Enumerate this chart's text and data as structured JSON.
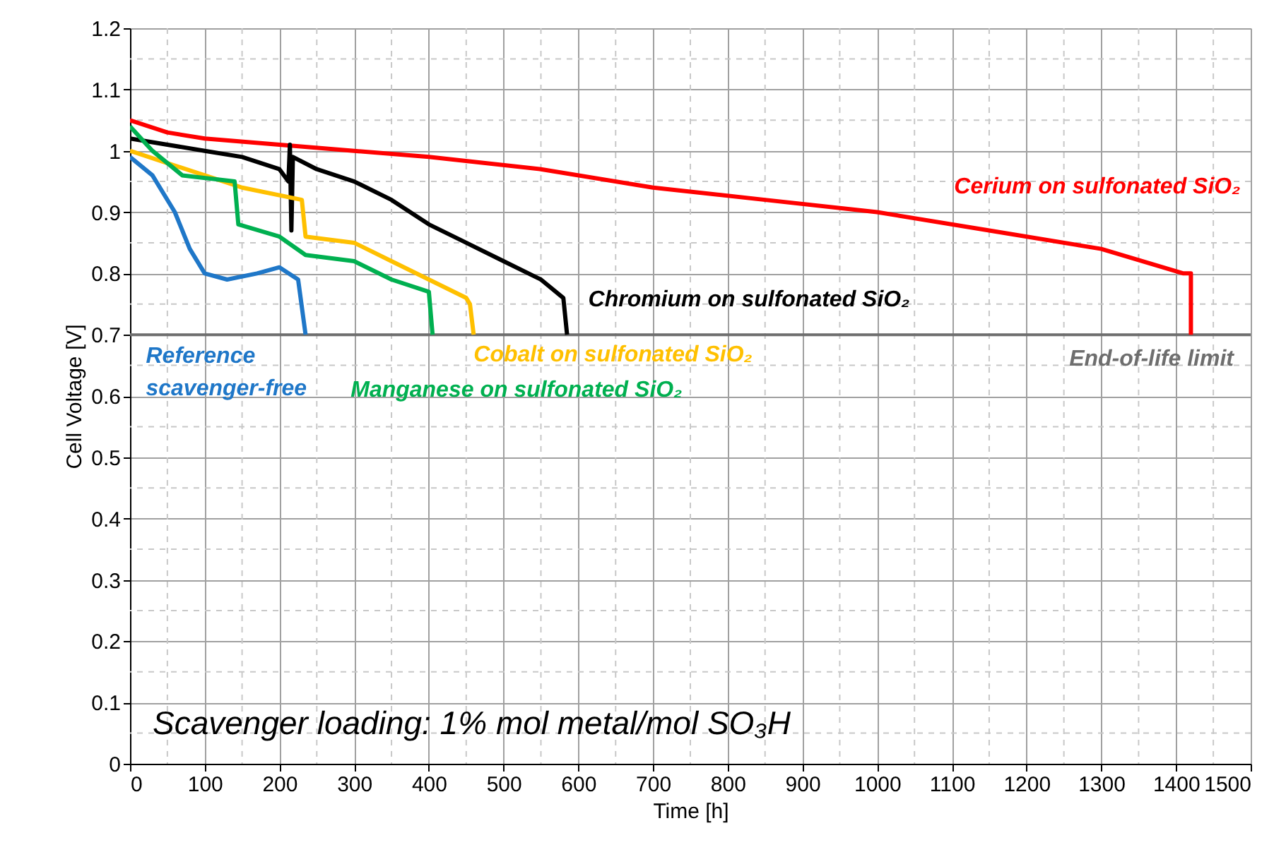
{
  "chart_data": {
    "type": "line",
    "xlabel": "Time [h]",
    "ylabel": "Cell Voltage  [V]",
    "xlim": [
      0,
      1500
    ],
    "xticks": [
      0,
      100,
      200,
      300,
      400,
      500,
      600,
      700,
      800,
      900,
      1000,
      1100,
      1200,
      1300,
      1400,
      1500
    ],
    "ylim": [
      0,
      1.2
    ],
    "yticks": [
      0,
      0.1,
      0.2,
      0.3,
      0.4,
      0.5,
      0.6,
      0.7,
      0.8,
      0.9,
      1,
      1.1,
      1.2
    ],
    "grid": true,
    "line_style": "solid",
    "series": [
      {
        "name": "Cerium on sulfonated SiO₂",
        "color": "#ff0000",
        "x": [
          0,
          50,
          100,
          200,
          300,
          400,
          550,
          700,
          850,
          1000,
          1150,
          1300,
          1410,
          1420,
          1420
        ],
        "values": [
          1.05,
          1.03,
          1.02,
          1.01,
          1.0,
          0.99,
          0.97,
          0.94,
          0.92,
          0.9,
          0.87,
          0.84,
          0.8,
          0.8,
          0.7
        ]
      },
      {
        "name": "Chromium on sulfonated SiO₂",
        "color": "#000000",
        "x": [
          0,
          50,
          100,
          150,
          200,
          212,
          214,
          216,
          218,
          250,
          300,
          350,
          400,
          450,
          500,
          550,
          580,
          585
        ],
        "values": [
          1.02,
          1.01,
          1.0,
          0.99,
          0.97,
          0.95,
          1.01,
          0.87,
          0.99,
          0.97,
          0.95,
          0.92,
          0.88,
          0.85,
          0.82,
          0.79,
          0.76,
          0.7
        ]
      },
      {
        "name": "Cobalt on sulfonated SiO₂",
        "color": "#ffc000",
        "x": [
          0,
          50,
          100,
          150,
          230,
          235,
          300,
          350,
          400,
          450,
          455,
          460
        ],
        "values": [
          1.0,
          0.98,
          0.96,
          0.94,
          0.92,
          0.86,
          0.85,
          0.82,
          0.79,
          0.76,
          0.75,
          0.7
        ]
      },
      {
        "name": "Manganese on sulfonated SiO₂",
        "color": "#00b050",
        "x": [
          0,
          30,
          70,
          140,
          145,
          200,
          235,
          300,
          350,
          400,
          405
        ],
        "values": [
          1.04,
          1.0,
          0.96,
          0.95,
          0.88,
          0.86,
          0.83,
          0.82,
          0.79,
          0.77,
          0.7
        ]
      },
      {
        "name": "Reference\nscavenger-free",
        "color": "#1f77c8",
        "x": [
          0,
          30,
          60,
          80,
          100,
          130,
          170,
          200,
          225,
          235
        ],
        "values": [
          0.99,
          0.96,
          0.9,
          0.84,
          0.8,
          0.79,
          0.8,
          0.81,
          0.79,
          0.7
        ]
      }
    ],
    "ref_lines": [
      {
        "axis": "y",
        "value": 0.7,
        "label": "End-of-life limit",
        "color": "#6e6e6e"
      }
    ],
    "annotations": [
      "Scavenger loading: 1% mol metal/mol SO₃H"
    ]
  }
}
